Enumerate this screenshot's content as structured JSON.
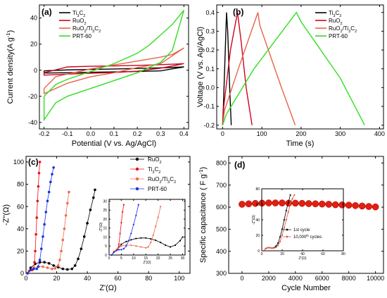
{
  "chart_data": [
    {
      "panel": "(a)",
      "type": "line",
      "xlabel": "Potential (V vs. Ag/AgCl)",
      "ylabel": "Current density(A g",
      "ylabel_sup": "-1",
      "ylabel_end": ")",
      "xlim": [
        -0.22,
        0.42
      ],
      "ylim": [
        -45,
        50
      ],
      "xticks": [
        -0.2,
        -0.1,
        0.0,
        0.1,
        0.2,
        0.3,
        0.4
      ],
      "xtick_labels": [
        "-0.2",
        "-0.1",
        "0.0",
        "0.1",
        "0.2",
        "0.3",
        "0.4"
      ],
      "yticks": [
        -40,
        -20,
        0,
        20,
        40
      ],
      "ytick_labels": [
        "-40",
        "-20",
        "0",
        "20",
        "40"
      ],
      "legend": {
        "position": "top-left",
        "entries": [
          {
            "label": "Ti",
            "sub": "3",
            "label2": "C",
            "sub2": "2",
            "color": "#000000"
          },
          {
            "label": "RuO",
            "sub": "2",
            "label2": "",
            "sub2": "",
            "color": "#d0021b"
          },
          {
            "label": "RuO",
            "sub": "2",
            "label2": "/Ti",
            "sub2": "3",
            "label3": "C",
            "sub3": "2",
            "color": "#e9624a"
          },
          {
            "label": "PRT-60",
            "sub": "",
            "label2": "",
            "sub2": "",
            "color": "#33dd22"
          }
        ]
      },
      "series": [
        {
          "name": "Ti3C2",
          "color": "#000000",
          "x": [
            -0.2,
            -0.1,
            0.0,
            0.1,
            0.2,
            0.3,
            0.4,
            0.3,
            0.2,
            0.1,
            0.0,
            -0.1,
            -0.2
          ],
          "y": [
            -0.5,
            0.2,
            0.6,
            0.9,
            1.3,
            1.8,
            2.5,
            -0.5,
            -1.0,
            -1.3,
            -1.6,
            -1.9,
            -2.2
          ]
        },
        {
          "name": "RuO2",
          "color": "#d0021b",
          "x": [
            -0.2,
            -0.1,
            0.0,
            0.1,
            0.2,
            0.3,
            0.4,
            0.3,
            0.2,
            0.1,
            0.0,
            -0.1,
            -0.2
          ],
          "y": [
            -2,
            2.5,
            3,
            3.3,
            3.7,
            4.2,
            5,
            1.5,
            -0.8,
            -1.8,
            -2.4,
            -3,
            -3.8
          ]
        },
        {
          "name": "RuO2/Ti3C2",
          "color": "#e9624a",
          "x": [
            -0.2,
            -0.15,
            -0.1,
            0.0,
            0.1,
            0.2,
            0.3,
            0.35,
            0.4,
            0.3,
            0.2,
            0.1,
            0.0,
            -0.1,
            -0.2
          ],
          "y": [
            -14,
            -5,
            -3,
            1,
            4,
            7,
            10,
            12,
            17,
            5,
            2,
            -2,
            -5,
            -10,
            -18
          ]
        },
        {
          "name": "PRT-60",
          "color": "#33dd22",
          "x": [
            -0.2,
            -0.15,
            -0.1,
            0.0,
            0.1,
            0.2,
            0.25,
            0.3,
            0.35,
            0.4,
            0.35,
            0.3,
            0.25,
            0.2,
            0.1,
            0.0,
            -0.1,
            -0.15,
            -0.2
          ],
          "y": [
            -20,
            -11,
            -7,
            -1,
            5,
            13,
            19,
            27,
            35,
            46,
            15,
            6,
            2,
            -2,
            -8,
            -14,
            -20,
            -25,
            -38
          ]
        }
      ]
    },
    {
      "panel": "(b)",
      "type": "line",
      "xlabel": "Time (s)",
      "ylabel": "Voltage (V vs. Ag/AgCl)",
      "xlim": [
        -15,
        410
      ],
      "ylim": [
        -0.22,
        0.44
      ],
      "xticks": [
        0,
        100,
        200,
        300,
        400
      ],
      "xtick_labels": [
        "0",
        "100",
        "200",
        "300",
        "400"
      ],
      "yticks": [
        -0.2,
        -0.1,
        0.0,
        0.1,
        0.2,
        0.3,
        0.4
      ],
      "ytick_labels": [
        "-0.2",
        "-0.1",
        "0.0",
        "0.1",
        "0.2",
        "0.3",
        "0.4"
      ],
      "legend": {
        "position": "top-right",
        "entries": [
          {
            "label": "Ti",
            "sub": "3",
            "label2": "C",
            "sub2": "2",
            "color": "#000000"
          },
          {
            "label": "RuO",
            "sub": "2",
            "label2": "",
            "sub2": "",
            "color": "#d0021b"
          },
          {
            "label": "RuO",
            "sub": "2",
            "label2": "/Ti",
            "sub2": "3",
            "label3": "C",
            "sub3": "2",
            "color": "#e9624a"
          },
          {
            "label": "PRT-60",
            "sub": "",
            "label2": "",
            "sub2": "",
            "color": "#33dd22"
          }
        ]
      },
      "series": [
        {
          "name": "Ti3C2",
          "color": "#000000",
          "x": [
            0,
            2,
            10,
            13,
            18,
            22
          ],
          "y": [
            -0.2,
            -0.1,
            0.4,
            0.3,
            0.0,
            -0.2
          ]
        },
        {
          "name": "RuO2",
          "color": "#d0021b",
          "x": [
            0,
            3,
            20,
            38,
            47,
            60,
            75
          ],
          "y": [
            -0.2,
            -0.1,
            0.2,
            0.4,
            0.25,
            0.0,
            -0.2
          ]
        },
        {
          "name": "RuO2/Ti3C2",
          "color": "#e9624a",
          "x": [
            0,
            5,
            40,
            90,
            95,
            120,
            150,
            185
          ],
          "y": [
            -0.2,
            -0.12,
            0.1,
            0.4,
            0.33,
            0.18,
            0.0,
            -0.2
          ]
        },
        {
          "name": "PRT-60",
          "color": "#33dd22",
          "x": [
            0,
            10,
            80,
            188,
            200,
            250,
            300,
            362
          ],
          "y": [
            -0.2,
            -0.14,
            0.1,
            0.4,
            0.35,
            0.2,
            0.05,
            -0.2
          ]
        }
      ]
    },
    {
      "panel": "(c)",
      "type": "scatter",
      "xlabel": "Z'(Ω)",
      "ylabel": "-Z''(Ω)",
      "xlim": [
        0,
        107
      ],
      "ylim": [
        0,
        105
      ],
      "xticks": [
        0,
        20,
        40,
        60,
        80,
        100
      ],
      "xtick_labels": [
        "0",
        "20",
        "40",
        "60",
        "80",
        "100"
      ],
      "yticks": [
        0,
        20,
        40,
        60,
        80,
        100
      ],
      "ytick_labels": [
        "0",
        "20",
        "40",
        "60",
        "80",
        "100"
      ],
      "legend": {
        "position": "top-right",
        "entries": [
          {
            "label": "RuO",
            "sub": "2",
            "label2": "",
            "sub2": "",
            "color": "#000000"
          },
          {
            "label": "Ti",
            "sub": "3",
            "label2": "C",
            "sub2": "2",
            "color": "#e8101a"
          },
          {
            "label": "RuO",
            "sub": "2",
            "label2": "/Ti",
            "sub2": "3",
            "label3": "C",
            "sub3": "2",
            "color": "#f06a4a"
          },
          {
            "label": "PRT-60",
            "sub": "",
            "label2": "",
            "sub2": "",
            "color": "#1c2fe0"
          }
        ]
      },
      "series": [
        {
          "name": "RuO2",
          "color": "#000000",
          "x": [
            1,
            3,
            6,
            9,
            12,
            15,
            18,
            21,
            24,
            27,
            30,
            32,
            34,
            36,
            38,
            40,
            42,
            44,
            45
          ],
          "y": [
            0,
            5,
            8.5,
            10,
            10,
            9,
            7,
            5.5,
            4,
            3.5,
            4,
            7,
            13,
            22,
            33,
            45,
            57,
            68,
            75
          ]
        },
        {
          "name": "Ti3C2",
          "color": "#e8101a",
          "x": [
            1,
            2,
            3,
            4,
            5,
            5.5,
            6,
            6.5,
            7,
            7.5,
            8,
            8.5,
            9
          ],
          "y": [
            0,
            2,
            3,
            3,
            4,
            10,
            20,
            35,
            50,
            65,
            78,
            90,
            100
          ]
        },
        {
          "name": "RuO2/Ti3C2",
          "color": "#f06a4a",
          "x": [
            1,
            3,
            5,
            8,
            11,
            14,
            17,
            19,
            21,
            22,
            23,
            24,
            25,
            26,
            27,
            28
          ],
          "y": [
            0,
            3,
            5,
            6,
            6,
            5,
            4,
            4.5,
            7,
            12,
            20,
            30,
            40,
            52,
            63,
            73
          ]
        },
        {
          "name": "PRT-60",
          "color": "#1c2fe0",
          "x": [
            1,
            3,
            5,
            7,
            8,
            9,
            10,
            11,
            12,
            13,
            14,
            15,
            16,
            17,
            18
          ],
          "y": [
            0,
            3,
            4,
            4,
            6,
            12,
            22,
            33,
            44,
            55,
            65,
            73,
            82,
            89,
            95
          ]
        }
      ],
      "inset": {
        "xlim": [
          0,
          31
        ],
        "ylim": [
          0,
          31
        ],
        "xticks": [
          0,
          5,
          10,
          15,
          20,
          25,
          30
        ],
        "xtick_labels": [
          "0",
          "5",
          "10",
          "15",
          "20",
          "25",
          "30"
        ],
        "yticks": [
          0,
          5,
          10,
          15,
          20,
          25,
          30
        ],
        "ytick_labels": [
          "0",
          "5",
          "10",
          "15",
          "20",
          "25",
          "30"
        ],
        "xlabel": "Z'(Ω)",
        "ylabel": "-Z''(Ω)",
        "series": [
          {
            "name": "RuO2",
            "color": "#000000",
            "x": [
              1,
              3,
              5,
              7,
              9,
              11,
              13,
              15,
              17,
              19,
              21,
              23,
              25,
              27,
              29,
              30
            ],
            "y": [
              0,
              3,
              6,
              7.5,
              8.5,
              9.2,
              9.5,
              9.5,
              9,
              8.2,
              7,
              5.5,
              4.5,
              5.5,
              8,
              10
            ]
          },
          {
            "name": "Ti3C2",
            "color": "#e8101a",
            "x": [
              1,
              2,
              3,
              3.5,
              4,
              4.5,
              5,
              5.5,
              6
            ],
            "y": [
              0,
              2,
              2.5,
              3,
              6,
              12,
              18,
              24,
              28
            ]
          },
          {
            "name": "RuO2/Ti3C2",
            "color": "#f06a4a",
            "x": [
              1,
              3,
              5,
              7,
              9,
              11,
              13,
              15,
              16,
              17,
              18,
              19,
              20,
              21
            ],
            "y": [
              0,
              3,
              5,
              5.5,
              5.5,
              5,
              4.5,
              4,
              4.5,
              7,
              11,
              16,
              21,
              27
            ]
          },
          {
            "name": "PRT-60",
            "color": "#1c2fe0",
            "x": [
              1,
              2,
              3,
              4,
              5,
              6,
              7,
              8,
              9,
              10,
              11,
              12
            ],
            "y": [
              0,
              1.5,
              2.5,
              3,
              3,
              3.5,
              5,
              8,
              12,
              17,
              22,
              28
            ]
          }
        ]
      }
    },
    {
      "panel": "(d)",
      "type": "scatter",
      "xlabel": "Cycle Number",
      "ylabel": "Specific capacitance ( F g",
      "ylabel_sup": "-1",
      "ylabel_end": ")",
      "xlim": [
        -1000,
        10600
      ],
      "ylim": [
        300,
        830
      ],
      "xticks": [
        0,
        2000,
        4000,
        6000,
        8000,
        10000
      ],
      "xtick_labels": [
        "0",
        "2000",
        "4000",
        "6000",
        "8000",
        "10000"
      ],
      "yticks": [
        300,
        400,
        500,
        600,
        700,
        800
      ],
      "ytick_labels": [
        "300",
        "400",
        "500",
        "600",
        "700",
        "800"
      ],
      "series": [
        {
          "name": "PRT-60",
          "color": "#e02010",
          "x": [
            0,
            500,
            1000,
            1500,
            2000,
            2500,
            3000,
            3500,
            4000,
            4500,
            5000,
            5500,
            6000,
            6500,
            7000,
            7500,
            8000,
            8500,
            9000,
            9500,
            10000
          ],
          "y": [
            613,
            615,
            617,
            618,
            619,
            619,
            619,
            618,
            618,
            617,
            616,
            615,
            614,
            613,
            611,
            610,
            609,
            607,
            605,
            603,
            601
          ]
        }
      ],
      "inset": {
        "xlim": [
          0,
          80
        ],
        "ylim": [
          0,
          80
        ],
        "xticks": [
          0,
          20,
          40,
          60,
          80
        ],
        "xtick_labels": [
          "0",
          "20",
          "40",
          "60",
          "80"
        ],
        "yticks": [
          0,
          20,
          40,
          60,
          80
        ],
        "ytick_labels": [
          "0",
          "20",
          "40",
          "60",
          "80"
        ],
        "xlabel": "Z'(Ω)",
        "ylabel": "-Z''(Ω)",
        "legend": [
          {
            "label": "1st cycle",
            "sup": "",
            "label_end": "",
            "color": "#000000"
          },
          {
            "label": "10,000",
            "sup": "th",
            "label_end": " cycles",
            "color": "#e05040"
          }
        ],
        "series": [
          {
            "name": "1st cycle",
            "color": "#000000",
            "x": [
              2,
              4,
              6,
              8,
              10,
              12,
              14,
              16,
              18,
              20,
              22,
              24,
              26,
              28
            ],
            "y": [
              0,
              3,
              4,
              4,
              3.5,
              4,
              6,
              10,
              18,
              28,
              40,
              52,
              62,
              72
            ]
          },
          {
            "name": "10,000th cycles",
            "color": "#e05040",
            "x": [
              2,
              4,
              6,
              8,
              10,
              12,
              14,
              16,
              18,
              20,
              22,
              24,
              26,
              28,
              30,
              32
            ],
            "y": [
              0,
              3,
              4,
              4,
              3.5,
              3.5,
              4.5,
              7,
              12,
              20,
              30,
              40,
              50,
              60,
              67,
              72
            ]
          }
        ]
      }
    }
  ]
}
